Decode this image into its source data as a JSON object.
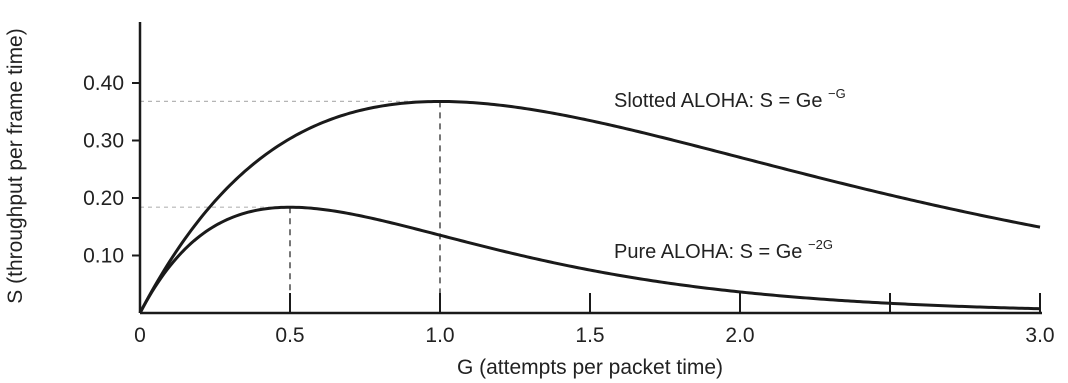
{
  "chart_data": {
    "type": "line",
    "title": "",
    "xlabel": "G (attempts per packet time)",
    "ylabel": "S (throughput per frame time)",
    "xlim": [
      0,
      3.0
    ],
    "ylim": [
      0,
      0.4
    ],
    "x_ticks": [
      "0",
      "0.5",
      "1.0",
      "1.5",
      "2.0",
      "3.0"
    ],
    "x_tick_values": [
      0,
      0.5,
      1.0,
      1.5,
      2.0,
      3.0
    ],
    "x_minor_ticks": [
      2.5
    ],
    "y_ticks": [
      "0.10",
      "0.20",
      "0.30",
      "0.40"
    ],
    "y_tick_values": [
      0.1,
      0.2,
      0.3,
      0.4
    ],
    "grid": false,
    "series": [
      {
        "formula": "slotted",
        "label_main": "Slotted ALOHA: S = Ge",
        "label_sup": "−G",
        "x": [
          0,
          0.25,
          0.5,
          0.75,
          1.0,
          1.25,
          1.5,
          1.75,
          2.0,
          2.25,
          2.5,
          2.75,
          3.0
        ],
        "y": [
          0,
          0.195,
          0.303,
          0.354,
          0.368,
          0.358,
          0.335,
          0.304,
          0.271,
          0.237,
          0.205,
          0.175,
          0.149
        ]
      },
      {
        "formula": "pure",
        "label_main": "Pure ALOHA: S = Ge",
        "label_sup": "−2G",
        "x": [
          0,
          0.25,
          0.5,
          0.75,
          1.0,
          1.25,
          1.5,
          1.75,
          2.0,
          2.25,
          2.5,
          2.75,
          3.0
        ],
        "y": [
          0,
          0.152,
          0.184,
          0.167,
          0.135,
          0.103,
          0.075,
          0.053,
          0.037,
          0.025,
          0.017,
          0.011,
          0.007
        ]
      }
    ],
    "guides": [
      {
        "x": 0.5,
        "y": 0.184
      },
      {
        "x": 1.0,
        "y": 0.368
      }
    ]
  }
}
